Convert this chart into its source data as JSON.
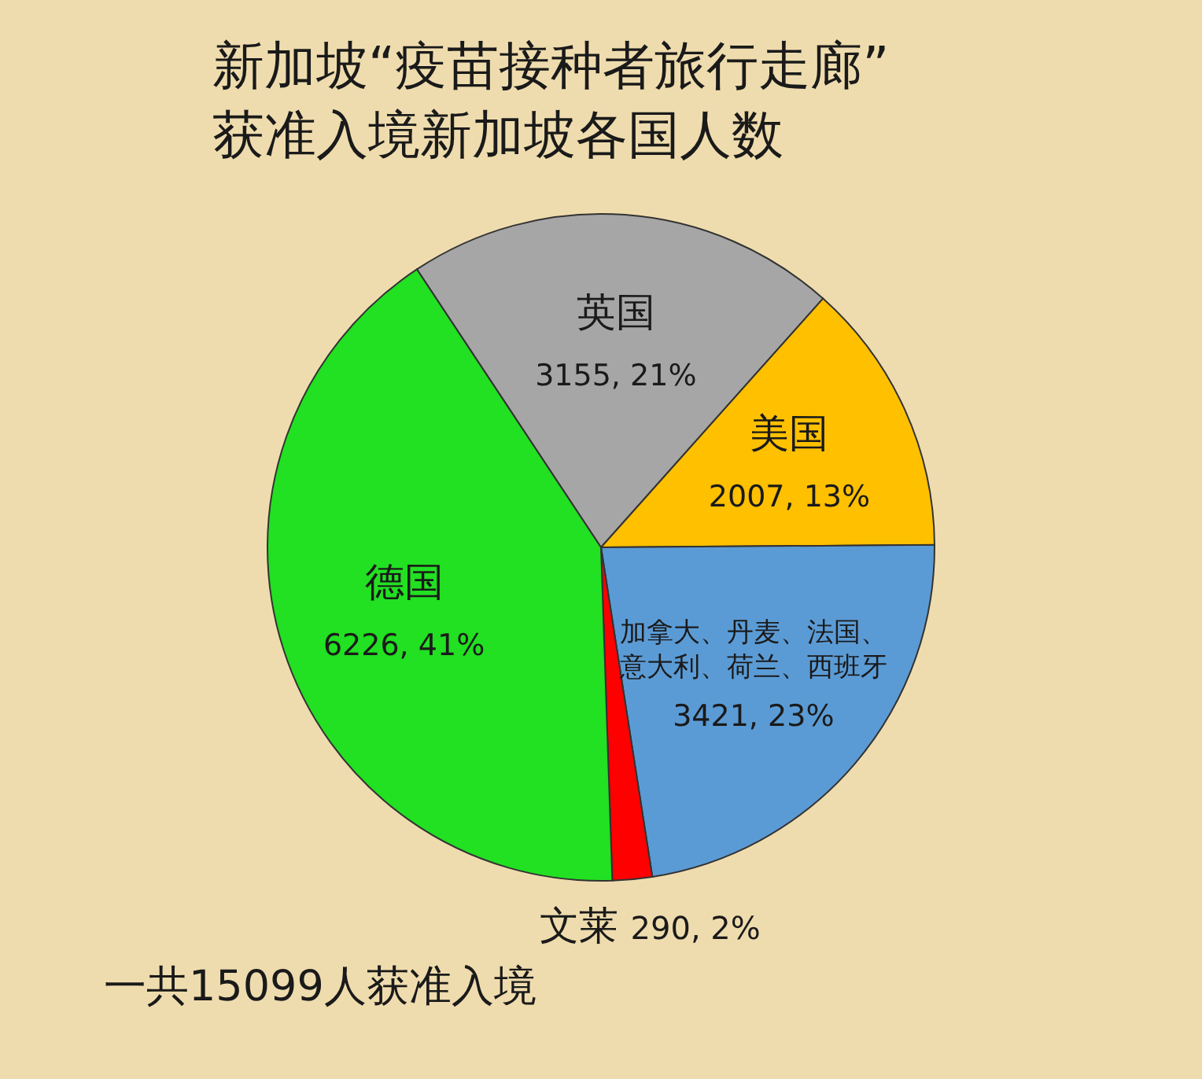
{
  "chart_data": {
    "type": "pie",
    "title": "新加坡“疫苗接种者旅行走廊”\n获准入境新加坡各国人数",
    "categories": [
      "英国",
      "美国",
      "加拿大、丹麦、法国、意大利、荷兰、西班牙",
      "文莱",
      "德国"
    ],
    "values": [
      3155,
      2007,
      3421,
      290,
      6226
    ],
    "value_labels": [
      "3155, 21%",
      "2007, 13%",
      "3421, 23%",
      "290, 2%",
      "6226, 41%"
    ],
    "colors": [
      "#a6a6a6",
      "#ffc000",
      "#5b9bd5",
      "#ff0000",
      "#22e022"
    ],
    "annotations": [
      "一共15099人获准入境"
    ]
  }
}
